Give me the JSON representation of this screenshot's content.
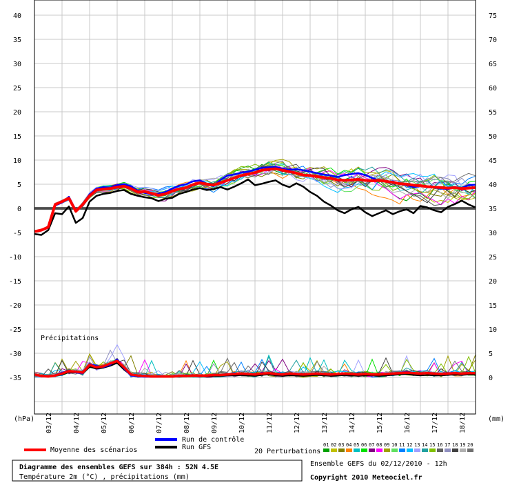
{
  "chart_data": {
    "type": "line",
    "title": "Diagramme des ensembles GEFS sur 384h : 52N 4.5E",
    "subtitle": "Température 2m (°C) , précipitations (mm)",
    "ensemble_info": "Ensemble GEFS du 02/12/2010 - 12h",
    "copyright": "Copyright 2010 Meteociel.fr",
    "left_axis_unit": "(hPa)",
    "right_axis_unit": "(mm)",
    "precip_label": "Précipitations",
    "left_ticks": [
      40,
      35,
      30,
      25,
      20,
      15,
      10,
      5,
      0,
      -5,
      -10,
      -15,
      -20,
      -25,
      -30,
      -35
    ],
    "right_ticks": [
      75,
      70,
      65,
      60,
      55,
      50,
      45,
      40,
      35,
      30,
      25,
      20,
      15,
      10,
      5,
      0
    ],
    "x_labels": [
      "03/12",
      "04/12",
      "05/12",
      "06/12",
      "07/12",
      "08/12",
      "09/12",
      "10/12",
      "11/12",
      "12/12",
      "13/12",
      "14/12",
      "15/12",
      "16/12",
      "17/12",
      "18/12"
    ],
    "ylim": [
      -35,
      40
    ],
    "precip_ylim": [
      0,
      75
    ],
    "legend": {
      "moyenne": "Moyenne des scénarios",
      "controle": "Run de contrôle",
      "gfs": "Run GFS",
      "perturbations": "20 Perturbations",
      "perturbation_ids": [
        "01",
        "02",
        "03",
        "04",
        "05",
        "06",
        "07",
        "08",
        "09",
        "10",
        "11",
        "12",
        "13",
        "14",
        "15",
        "16",
        "17",
        "18",
        "19",
        "20"
      ]
    },
    "perturbation_colors": [
      "#00a000",
      "#c0c000",
      "#808000",
      "#ff8000",
      "#00c0c0",
      "#00e000",
      "#800080",
      "#ff00ff",
      "#a0a000",
      "#60e060",
      "#0080ff",
      "#00c0ff",
      "#a0a0ff",
      "#20a0a0",
      "#80c000",
      "#606060",
      "#9090c0",
      "#404040",
      "#b0b0b0",
      "#707070"
    ],
    "temperature_series": {
      "x_hours": [
        0,
        6,
        12,
        18,
        24,
        30,
        36,
        42,
        48,
        54,
        60,
        66,
        72,
        78,
        84,
        90,
        96,
        102,
        108,
        114,
        120,
        126,
        132,
        138,
        144,
        150,
        156,
        162,
        168,
        174,
        180,
        186,
        192,
        198,
        204,
        210,
        216,
        222,
        228,
        234,
        240,
        246,
        252,
        258,
        264,
        270,
        276,
        282,
        288,
        294,
        300,
        306,
        312,
        318,
        324,
        330,
        336,
        342,
        348,
        354,
        360,
        366,
        372,
        378,
        384
      ],
      "moyenne": [
        -4.8,
        -4.5,
        -3.9,
        0.8,
        1.4,
        2.1,
        -0.6,
        0.8,
        2.6,
        3.8,
        4.0,
        4.1,
        4.4,
        4.6,
        4.1,
        3.4,
        3.5,
        3.1,
        2.7,
        3.0,
        3.6,
        4.0,
        4.3,
        4.9,
        5.3,
        5.0,
        4.8,
        5.3,
        5.8,
        6.3,
        6.8,
        7.1,
        7.4,
        7.9,
        8.1,
        8.2,
        7.9,
        7.6,
        7.3,
        6.9,
        6.8,
        6.6,
        6.4,
        6.2,
        5.9,
        5.8,
        5.9,
        6.0,
        5.8,
        5.7,
        5.8,
        5.6,
        5.4,
        5.1,
        5.0,
        4.8,
        4.7,
        4.5,
        4.4,
        4.3,
        4.2,
        4.3,
        4.1,
        4.2,
        4.3
      ],
      "controle": [
        -4.8,
        -4.6,
        -4.0,
        0.6,
        1.2,
        2.4,
        -0.4,
        0.6,
        2.9,
        4.1,
        4.4,
        4.3,
        4.8,
        5.0,
        4.6,
        3.6,
        3.2,
        2.9,
        3.0,
        3.4,
        4.1,
        4.7,
        5.0,
        5.6,
        5.8,
        5.0,
        4.6,
        5.9,
        6.8,
        7.0,
        7.4,
        7.6,
        8.0,
        8.4,
        8.5,
        8.6,
        8.2,
        8.0,
        8.1,
        7.9,
        7.6,
        7.3,
        7.0,
        6.8,
        6.5,
        6.9,
        7.1,
        7.3,
        6.9,
        6.3,
        5.8,
        5.5,
        5.6,
        5.0,
        4.8,
        4.4,
        4.6,
        4.4,
        4.3,
        4.1,
        4.0,
        4.3,
        4.2,
        4.8,
        4.9
      ],
      "gfs": [
        -5.3,
        -5.5,
        -4.5,
        -1.0,
        -1.2,
        0.4,
        -3.0,
        -2.0,
        1.4,
        2.6,
        3.0,
        3.2,
        3.6,
        3.8,
        3.0,
        2.6,
        2.3,
        2.1,
        1.5,
        2.0,
        2.2,
        3.0,
        3.4,
        3.9,
        4.2,
        3.8,
        4.0,
        4.4,
        3.9,
        4.5,
        5.2,
        6.0,
        4.8,
        5.1,
        5.5,
        5.8,
        4.9,
        4.4,
        5.2,
        4.5,
        3.4,
        2.6,
        1.4,
        0.6,
        -0.4,
        -1.0,
        -0.2,
        0.3,
        -0.8,
        -1.6,
        -1.0,
        -0.4,
        -1.2,
        -0.6,
        -0.2,
        -1.0,
        0.5,
        0.2,
        -0.4,
        -0.8,
        0.3,
        0.9,
        1.6,
        0.8,
        0.2
      ]
    },
    "precip_series": {
      "x_hours": [
        0,
        6,
        12,
        18,
        24,
        30,
        36,
        42,
        48,
        54,
        60,
        66,
        72,
        78,
        84,
        90,
        96,
        102,
        108,
        114,
        120,
        126,
        132,
        138,
        144,
        150,
        156,
        162,
        168,
        174,
        180,
        186,
        192,
        198,
        204,
        210,
        216,
        222,
        228,
        234,
        240,
        246,
        252,
        258,
        264,
        270,
        276,
        282,
        288,
        294,
        300,
        306,
        312,
        318,
        324,
        330,
        336,
        342,
        348,
        354,
        360,
        366,
        372,
        378,
        384
      ],
      "moyenne": [
        0.6,
        0.3,
        0.2,
        0.4,
        0.8,
        1.3,
        1.2,
        1.0,
        2.6,
        2.1,
        2.3,
        2.9,
        3.4,
        2.1,
        0.6,
        0.4,
        0.3,
        0.2,
        0.2,
        0.2,
        0.2,
        0.3,
        0.3,
        0.4,
        0.4,
        0.4,
        0.5,
        0.5,
        0.6,
        0.7,
        0.8,
        0.7,
        0.6,
        0.8,
        0.9,
        0.7,
        0.6,
        0.8,
        0.7,
        0.6,
        0.7,
        0.8,
        0.7,
        0.6,
        0.7,
        0.8,
        0.7,
        0.6,
        0.7,
        0.6,
        0.6,
        0.7,
        0.8,
        0.9,
        1.0,
        0.9,
        0.8,
        0.9,
        0.8,
        0.7,
        0.8,
        0.9,
        0.8,
        0.9,
        0.9
      ],
      "controle": [
        0.6,
        0.3,
        0.2,
        0.5,
        1.0,
        1.4,
        1.0,
        0.8,
        2.8,
        2.4,
        2.1,
        2.6,
        3.8,
        1.8,
        0.4,
        0.2,
        0.1,
        0.1,
        0.1,
        0.2,
        0.3,
        0.2,
        0.3,
        0.5,
        0.4,
        0.3,
        0.6,
        0.5,
        0.7,
        0.9,
        0.7,
        0.6,
        0.6,
        1.0,
        0.8,
        0.6,
        0.5,
        0.9,
        0.8,
        0.6,
        0.8,
        0.9,
        0.6,
        0.5,
        0.8,
        0.9,
        0.8,
        0.5,
        0.6,
        0.6,
        0.5,
        0.8,
        0.9,
        1.0,
        1.2,
        0.9,
        0.8,
        1.0,
        0.9,
        0.8,
        0.9,
        1.0,
        0.9,
        1.0,
        1.0
      ],
      "gfs": [
        0.7,
        0.2,
        0.2,
        0.3,
        0.6,
        1.1,
        1.0,
        0.9,
        2.2,
        1.8,
        2.0,
        2.4,
        3.0,
        1.6,
        0.5,
        0.3,
        0.2,
        0.1,
        0.1,
        0.1,
        0.1,
        0.2,
        0.2,
        0.3,
        0.2,
        0.2,
        0.3,
        0.3,
        0.4,
        0.4,
        0.5,
        0.4,
        0.3,
        0.5,
        0.6,
        0.4,
        0.3,
        0.4,
        0.4,
        0.3,
        0.4,
        0.5,
        0.4,
        0.3,
        0.4,
        0.5,
        0.4,
        0.3,
        0.4,
        0.4,
        0.3,
        0.4,
        0.5,
        0.6,
        0.7,
        0.5,
        0.4,
        0.5,
        0.4,
        0.4,
        0.5,
        0.6,
        0.5,
        0.6,
        0.6
      ]
    }
  }
}
